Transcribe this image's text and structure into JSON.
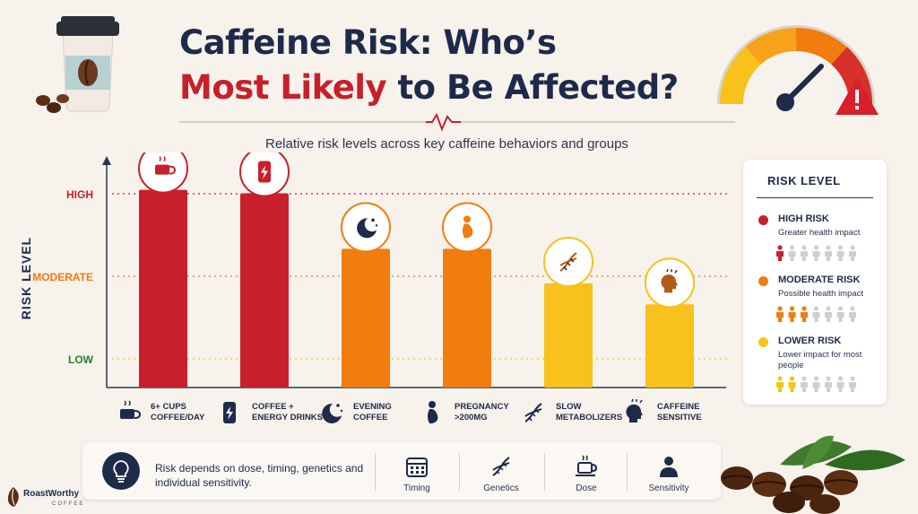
{
  "header": {
    "title_line1": "Caffeine Risk: Who’s",
    "title_line2_red": "Most Likely",
    "title_line2_rest": " to Be Affected?",
    "subtitle": "Relative risk levels across key caffeine behaviors and groups"
  },
  "colors": {
    "high": "#c8202a",
    "moderate": "#f07d0e",
    "low": "#f6c21b",
    "navy": "#1e2a4a"
  },
  "chart_data": {
    "type": "bar",
    "ylabel": "RISK LEVEL",
    "xlabel": "",
    "y_ticks": [
      "LOW",
      "MODERATE",
      "HIGH"
    ],
    "ylim": [
      0,
      3
    ],
    "grid": "dotted reference lines at LOW, MODERATE and HIGH",
    "categories": [
      "6+ CUPS COFFEE/DAY",
      "COFFEE + ENERGY DRINKS",
      "EVENING COFFEE",
      "PREGNANCY >200MG",
      "SLOW METABOLIZERS",
      "CAFFEINE SENSITIVE"
    ],
    "category_lines": [
      [
        "6+ CUPS",
        "COFFEE/DAY"
      ],
      [
        "COFFEE +",
        "ENERGY DRINKS"
      ],
      [
        "EVENING",
        "COFFEE"
      ],
      [
        "PREGNANCY",
        ">200MG"
      ],
      [
        "SLOW",
        "METABOLIZERS"
      ],
      [
        "CAFFEINE",
        "SENSITIVE"
      ]
    ],
    "values": [
      2.85,
      2.8,
      2.0,
      2.0,
      1.5,
      1.2
    ],
    "risk_levels": [
      "high",
      "high",
      "moderate",
      "moderate",
      "low",
      "low"
    ],
    "icons": [
      "coffee-cup-icon",
      "energy-drink-icon",
      "moon-stars-icon",
      "pregnancy-icon",
      "dna-icon",
      "sensitive-head-icon"
    ]
  },
  "legend": {
    "title": "RISK LEVEL",
    "items": [
      {
        "name": "HIGH RISK",
        "desc": "Greater health impact",
        "level": "high",
        "filled": 1
      },
      {
        "name": "MODERATE RISK",
        "desc": "Possible health impact",
        "level": "moderate",
        "filled": 3
      },
      {
        "name": "LOWER RISK",
        "desc": "Lower impact for most people",
        "level": "low",
        "filled": 2
      }
    ],
    "people_per_row": 7
  },
  "footer": {
    "note": "Risk depends on dose, timing, genetics and individual sensitivity.",
    "factors": [
      "Timing",
      "Genetics",
      "Dose",
      "Sensitivity"
    ],
    "factor_icons": [
      "calendar-icon",
      "dna-icon",
      "cup-icon",
      "person-icon"
    ],
    "brand": "RoastWorthy",
    "brand_sub": "COFFEE"
  }
}
